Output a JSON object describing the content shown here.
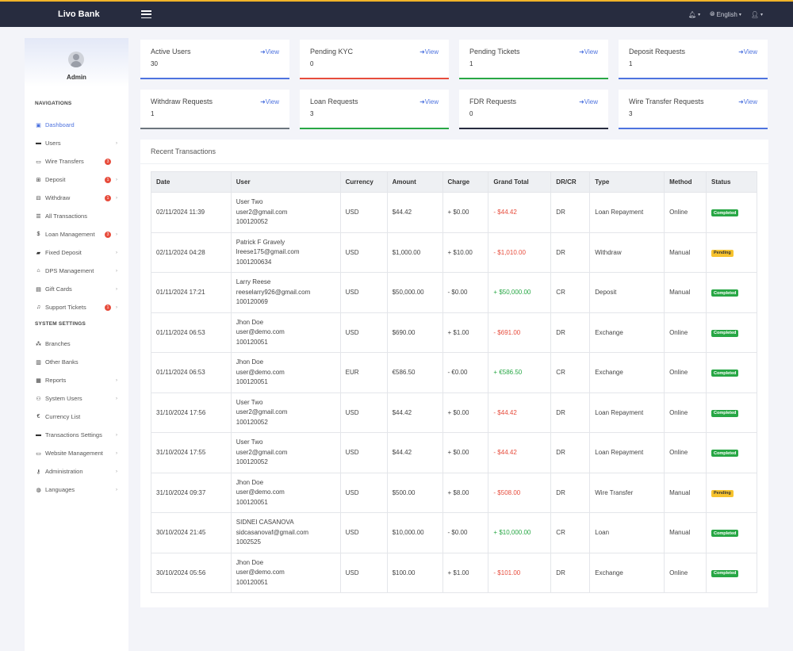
{
  "app": {
    "brand": "Livo Bank",
    "language": "English"
  },
  "sidebar": {
    "admin_name": "Admin",
    "section_navigations": "NAVIGATIONS",
    "section_system": "SYSTEM SETTINGS",
    "nav_items": [
      {
        "label": "Dashboard",
        "icon": "dashboard-icon",
        "active": true
      },
      {
        "label": "Users",
        "icon": "users-icon",
        "chevron": true
      },
      {
        "label": "Wire Transfers",
        "icon": "wire-transfer-icon",
        "badge": "3"
      },
      {
        "label": "Deposit",
        "icon": "plus-square-icon",
        "badge": "1",
        "chevron": true
      },
      {
        "label": "Withdraw",
        "icon": "minus-square-icon",
        "badge": "1",
        "chevron": true
      },
      {
        "label": "All Transactions",
        "icon": "list-icon"
      },
      {
        "label": "Loan Management",
        "icon": "dollar-icon",
        "badge": "3",
        "chevron": true
      },
      {
        "label": "Fixed Deposit",
        "icon": "lock-icon",
        "chevron": true
      },
      {
        "label": "DPS Management",
        "icon": "building-icon",
        "chevron": true
      },
      {
        "label": "Gift Cards",
        "icon": "gift-icon",
        "chevron": true
      },
      {
        "label": "Support Tickets",
        "icon": "headset-icon",
        "badge": "1",
        "chevron": true
      }
    ],
    "system_items": [
      {
        "label": "Branches",
        "icon": "sitemap-icon"
      },
      {
        "label": "Other Banks",
        "icon": "bank-icon"
      },
      {
        "label": "Reports",
        "icon": "chart-icon",
        "chevron": true
      },
      {
        "label": "System Users",
        "icon": "user-group-icon",
        "chevron": true
      },
      {
        "label": "Currency List",
        "icon": "euro-icon"
      },
      {
        "label": "Transactions Settings",
        "icon": "card-icon",
        "chevron": true
      },
      {
        "label": "Website Management",
        "icon": "desktop-icon",
        "chevron": true
      },
      {
        "label": "Administration",
        "icon": "key-icon",
        "chevron": true
      },
      {
        "label": "Languages",
        "icon": "globe-icon",
        "chevron": true
      }
    ]
  },
  "cards": [
    {
      "title": "Active Users",
      "value": "30",
      "link": "View",
      "color": "#4e73df"
    },
    {
      "title": "Pending KYC",
      "value": "0",
      "link": "View",
      "color": "#e74c3c"
    },
    {
      "title": "Pending Tickets",
      "value": "1",
      "link": "View",
      "color": "#28a745"
    },
    {
      "title": "Deposit Requests",
      "value": "1",
      "link": "View",
      "color": "#4e73df"
    },
    {
      "title": "Withdraw Requests",
      "value": "1",
      "link": "View",
      "color": "#6c757d"
    },
    {
      "title": "Loan Requests",
      "value": "3",
      "link": "View",
      "color": "#28a745"
    },
    {
      "title": "FDR Requests",
      "value": "0",
      "link": "View",
      "color": "#272c3f"
    },
    {
      "title": "Wire Transfer Requests",
      "value": "3",
      "link": "View",
      "color": "#4e73df"
    }
  ],
  "transactions": {
    "title": "Recent Transactions",
    "columns": [
      "Date",
      "User",
      "Currency",
      "Amount",
      "Charge",
      "Grand Total",
      "DR/CR",
      "Type",
      "Method",
      "Status"
    ],
    "rows": [
      {
        "date": "02/11/2024 11:39",
        "name": "User Two",
        "email": "user2@gmail.com",
        "account": "100120052",
        "currency": "USD",
        "amount": "$44.42",
        "charge": "+ $0.00",
        "total": "- $44.42",
        "drcr": "DR",
        "type": "Loan Repayment",
        "method": "Online",
        "status": "Completed"
      },
      {
        "date": "02/11/2024 04:28",
        "name": "Patrick F Gravely",
        "email": "lreese175@gmail.com",
        "account": "1001200634",
        "currency": "USD",
        "amount": "$1,000.00",
        "charge": "+ $10.00",
        "total": "- $1,010.00",
        "drcr": "DR",
        "type": "Withdraw",
        "method": "Manual",
        "status": "Pending"
      },
      {
        "date": "01/11/2024 17:21",
        "name": "Larry Reese",
        "email": "reeselarry926@gmail.com",
        "account": "100120069",
        "currency": "USD",
        "amount": "$50,000.00",
        "charge": "- $0.00",
        "total": "+ $50,000.00",
        "drcr": "CR",
        "type": "Deposit",
        "method": "Manual",
        "status": "Completed"
      },
      {
        "date": "01/11/2024 06:53",
        "name": "Jhon Doe",
        "email": "user@demo.com",
        "account": "100120051",
        "currency": "USD",
        "amount": "$690.00",
        "charge": "+ $1.00",
        "total": "- $691.00",
        "drcr": "DR",
        "type": "Exchange",
        "method": "Online",
        "status": "Completed"
      },
      {
        "date": "01/11/2024 06:53",
        "name": "Jhon Doe",
        "email": "user@demo.com",
        "account": "100120051",
        "currency": "EUR",
        "amount": "€586.50",
        "charge": "- €0.00",
        "total": "+ €586.50",
        "drcr": "CR",
        "type": "Exchange",
        "method": "Online",
        "status": "Completed"
      },
      {
        "date": "31/10/2024 17:56",
        "name": "User Two",
        "email": "user2@gmail.com",
        "account": "100120052",
        "currency": "USD",
        "amount": "$44.42",
        "charge": "+ $0.00",
        "total": "- $44.42",
        "drcr": "DR",
        "type": "Loan Repayment",
        "method": "Online",
        "status": "Completed"
      },
      {
        "date": "31/10/2024 17:55",
        "name": "User Two",
        "email": "user2@gmail.com",
        "account": "100120052",
        "currency": "USD",
        "amount": "$44.42",
        "charge": "+ $0.00",
        "total": "- $44.42",
        "drcr": "DR",
        "type": "Loan Repayment",
        "method": "Online",
        "status": "Completed"
      },
      {
        "date": "31/10/2024 09:37",
        "name": "Jhon Doe",
        "email": "user@demo.com",
        "account": "100120051",
        "currency": "USD",
        "amount": "$500.00",
        "charge": "+ $8.00",
        "total": "- $508.00",
        "drcr": "DR",
        "type": "Wire Transfer",
        "method": "Manual",
        "status": "Pending"
      },
      {
        "date": "30/10/2024 21:45",
        "name": "SIDNEI CASANOVA",
        "email": "sidcasanovaf@gmail.com",
        "account": "1002525",
        "currency": "USD",
        "amount": "$10,000.00",
        "charge": "- $0.00",
        "total": "+ $10,000.00",
        "drcr": "CR",
        "type": "Loan",
        "method": "Manual",
        "status": "Completed"
      },
      {
        "date": "30/10/2024 05:56",
        "name": "Jhon Doe",
        "email": "user@demo.com",
        "account": "100120051",
        "currency": "USD",
        "amount": "$100.00",
        "charge": "+ $1.00",
        "total": "- $101.00",
        "drcr": "DR",
        "type": "Exchange",
        "method": "Online",
        "status": "Completed"
      }
    ]
  }
}
